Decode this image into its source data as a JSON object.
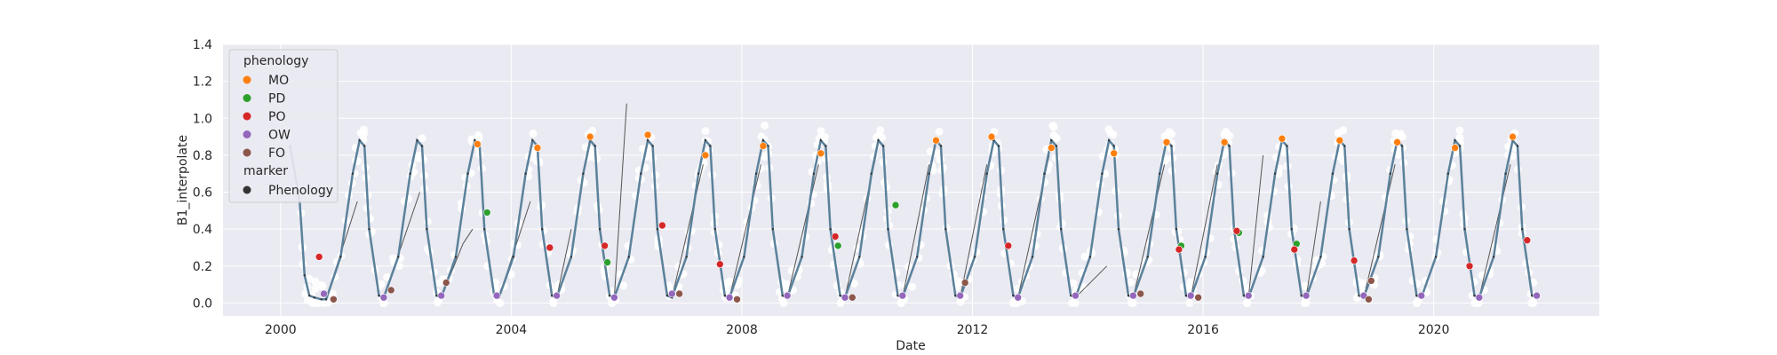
{
  "chart_data": {
    "type": "line",
    "title": "",
    "xlabel": "Date",
    "ylabel": "B1_interpolate",
    "xlim": [
      "1999-01-01",
      "2022-11-15"
    ],
    "ylim": [
      -0.07,
      1.4
    ],
    "x_ticks": [
      "2000",
      "2004",
      "2008",
      "2012",
      "2016",
      "2020"
    ],
    "y_ticks": [
      "0.0",
      "0.2",
      "0.4",
      "0.6",
      "0.8",
      "1.0",
      "1.2",
      "1.4"
    ],
    "grid": true,
    "background": "#eaeaf2",
    "legend": {
      "placement": "upper-left",
      "title": "phenology",
      "entries": [
        {
          "label": "MO",
          "color": "#ff7f0e"
        },
        {
          "label": "PD",
          "color": "#2ca02c"
        },
        {
          "label": "PO",
          "color": "#d62728"
        },
        {
          "label": "OW",
          "color": "#9467bd"
        },
        {
          "label": "FO",
          "color": "#8c564b"
        }
      ],
      "marker_title": "marker",
      "marker_entries": [
        {
          "label": "Phenology",
          "color": "#333333"
        }
      ]
    },
    "colors": {
      "smoothed": "#5b819b",
      "interpolated": "#555555",
      "raw": "#ffffff",
      "MO": "#ff7f0e",
      "PD": "#2ca02c",
      "PO": "#d62728",
      "OW": "#9467bd",
      "FO": "#8c564b"
    },
    "series": [
      {
        "name": "",
        "kind": "smoothed-line",
        "x": [
          "2000-03-01",
          "2000-05-01",
          "2000-06-01",
          "2000-07-01",
          "2000-08-01",
          "2000-09-15",
          "2000-10-15",
          "2001-01-15",
          "2001-04-01",
          "2001-05-15",
          "2001-06-15",
          "2001-07-15",
          "2001-09-15",
          "2001-10-15",
          "2002-01-15",
          "2002-04-01",
          "2002-05-15",
          "2002-06-15",
          "2002-07-15",
          "2002-09-15",
          "2002-10-15",
          "2003-01-15",
          "2003-04-01",
          "2003-05-15",
          "2003-06-15",
          "2003-07-15",
          "2003-09-15",
          "2003-10-15",
          "2004-01-15",
          "2004-04-01",
          "2004-05-15",
          "2004-06-15",
          "2004-07-15",
          "2004-09-15",
          "2004-10-15",
          "2005-01-15",
          "2005-04-01",
          "2005-05-15",
          "2005-06-15",
          "2005-07-15",
          "2005-09-15",
          "2005-10-15",
          "2006-01-15",
          "2006-04-01",
          "2006-05-15",
          "2006-06-15",
          "2006-07-15",
          "2006-09-15",
          "2006-10-15",
          "2007-01-15",
          "2007-04-01",
          "2007-05-15",
          "2007-06-15",
          "2007-07-15",
          "2007-09-15",
          "2007-10-15",
          "2008-01-15",
          "2008-04-01",
          "2008-05-15",
          "2008-06-15",
          "2008-07-15",
          "2008-09-15",
          "2008-10-15",
          "2009-01-15",
          "2009-04-01",
          "2009-05-15",
          "2009-06-15",
          "2009-07-15",
          "2009-09-15",
          "2009-10-15",
          "2010-01-15",
          "2010-04-01",
          "2010-05-15",
          "2010-06-15",
          "2010-07-15",
          "2010-09-15",
          "2010-10-15",
          "2011-01-15",
          "2011-04-01",
          "2011-05-15",
          "2011-06-15",
          "2011-07-15",
          "2011-09-15",
          "2011-10-15",
          "2012-01-15",
          "2012-04-01",
          "2012-05-15",
          "2012-06-15",
          "2012-07-15",
          "2012-09-15",
          "2012-10-15",
          "2013-01-15",
          "2013-04-01",
          "2013-05-15",
          "2013-06-15",
          "2013-07-15",
          "2013-09-15",
          "2013-10-15",
          "2014-01-15",
          "2014-04-01",
          "2014-05-15",
          "2014-06-15",
          "2014-07-15",
          "2014-09-15",
          "2014-10-15",
          "2015-01-15",
          "2015-04-01",
          "2015-05-15",
          "2015-06-15",
          "2015-07-15",
          "2015-09-15",
          "2015-10-15",
          "2016-01-15",
          "2016-04-01",
          "2016-05-15",
          "2016-06-15",
          "2016-07-15",
          "2016-09-15",
          "2016-10-15",
          "2017-01-15",
          "2017-04-01",
          "2017-05-15",
          "2017-06-15",
          "2017-07-15",
          "2017-09-15",
          "2017-10-15",
          "2018-01-15",
          "2018-04-01",
          "2018-05-15",
          "2018-06-15",
          "2018-07-15",
          "2018-09-15",
          "2018-10-15",
          "2019-01-15",
          "2019-04-01",
          "2019-05-15",
          "2019-06-15",
          "2019-07-15",
          "2019-09-15",
          "2019-10-15",
          "2020-01-15",
          "2020-04-01",
          "2020-05-15",
          "2020-06-15",
          "2020-07-15",
          "2020-09-15",
          "2020-10-15",
          "2021-01-15",
          "2021-04-01",
          "2021-05-15",
          "2021-06-15",
          "2021-07-15",
          "2021-09-15",
          "2021-10-15"
        ],
        "y": [
          0.85,
          0.55,
          0.15,
          0.04,
          0.03,
          0.02,
          0.02,
          0.25,
          0.7,
          0.88,
          0.85,
          0.4,
          0.04,
          0.03,
          0.25,
          0.7,
          0.88,
          0.85,
          0.4,
          0.04,
          0.03,
          0.25,
          0.7,
          0.88,
          0.85,
          0.4,
          0.04,
          0.03,
          0.25,
          0.7,
          0.88,
          0.85,
          0.4,
          0.04,
          0.03,
          0.25,
          0.7,
          0.88,
          0.85,
          0.4,
          0.04,
          0.03,
          0.25,
          0.7,
          0.88,
          0.85,
          0.4,
          0.04,
          0.03,
          0.25,
          0.7,
          0.88,
          0.85,
          0.4,
          0.04,
          0.03,
          0.25,
          0.7,
          0.88,
          0.85,
          0.4,
          0.04,
          0.03,
          0.25,
          0.7,
          0.88,
          0.85,
          0.4,
          0.04,
          0.03,
          0.25,
          0.7,
          0.88,
          0.85,
          0.4,
          0.04,
          0.03,
          0.25,
          0.7,
          0.88,
          0.85,
          0.4,
          0.04,
          0.03,
          0.25,
          0.7,
          0.88,
          0.85,
          0.4,
          0.04,
          0.03,
          0.25,
          0.7,
          0.88,
          0.85,
          0.4,
          0.04,
          0.03,
          0.25,
          0.7,
          0.88,
          0.85,
          0.4,
          0.04,
          0.03,
          0.25,
          0.7,
          0.88,
          0.85,
          0.4,
          0.04,
          0.03,
          0.25,
          0.7,
          0.88,
          0.85,
          0.4,
          0.04,
          0.03,
          0.25,
          0.7,
          0.88,
          0.85,
          0.4,
          0.04,
          0.03,
          0.25,
          0.7,
          0.88,
          0.85,
          0.4,
          0.04,
          0.03,
          0.25,
          0.7,
          0.88,
          0.85,
          0.4,
          0.04,
          0.03,
          0.25,
          0.7,
          0.88,
          0.85,
          0.4,
          0.04,
          0.03,
          0.25,
          0.7,
          0.88,
          0.85,
          0.4,
          0.04,
          0.03
        ]
      },
      {
        "name": "",
        "kind": "interpolated-gap-line",
        "segments": [
          {
            "x": [
              "2000-10-15",
              "2001-05-01"
            ],
            "y": [
              0.02,
              0.55
            ]
          },
          {
            "x": [
              "2001-10-15",
              "2002-06-01"
            ],
            "y": [
              0.03,
              0.6
            ]
          },
          {
            "x": [
              "2002-10-15",
              "2003-03-01"
            ],
            "y": [
              0.03,
              0.32
            ]
          },
          {
            "x": [
              "2003-03-01",
              "2003-05-01"
            ],
            "y": [
              0.32,
              0.4
            ]
          },
          {
            "x": [
              "2003-10-15",
              "2004-05-01"
            ],
            "y": [
              0.03,
              0.55
            ]
          },
          {
            "x": [
              "2004-10-15",
              "2005-01-15"
            ],
            "y": [
              0.03,
              0.4
            ]
          },
          {
            "x": [
              "2005-10-15",
              "2006-01-01"
            ],
            "y": [
              0.03,
              1.08
            ]
          },
          {
            "x": [
              "2006-10-15",
              "2007-05-01"
            ],
            "y": [
              0.03,
              0.75
            ]
          },
          {
            "x": [
              "2007-10-15",
              "2008-05-01"
            ],
            "y": [
              0.03,
              0.75
            ]
          },
          {
            "x": [
              "2008-10-15",
              "2009-05-01"
            ],
            "y": [
              0.03,
              0.75
            ]
          },
          {
            "x": [
              "2009-10-15",
              "2010-05-01"
            ],
            "y": [
              0.03,
              0.8
            ]
          },
          {
            "x": [
              "2010-10-15",
              "2011-04-01"
            ],
            "y": [
              0.03,
              0.75
            ]
          },
          {
            "x": [
              "2011-10-15",
              "2012-04-01"
            ],
            "y": [
              0.03,
              0.75
            ]
          },
          {
            "x": [
              "2012-10-15",
              "2013-05-01"
            ],
            "y": [
              0.03,
              0.8
            ]
          },
          {
            "x": [
              "2013-10-15",
              "2014-05-01"
            ],
            "y": [
              0.03,
              0.2
            ]
          },
          {
            "x": [
              "2014-10-15",
              "2015-05-01"
            ],
            "y": [
              0.03,
              0.75
            ]
          },
          {
            "x": [
              "2015-10-15",
              "2016-04-01"
            ],
            "y": [
              0.03,
              0.75
            ]
          },
          {
            "x": [
              "2016-10-15",
              "2017-01-15"
            ],
            "y": [
              0.03,
              0.8
            ]
          },
          {
            "x": [
              "2017-10-15",
              "2018-01-15"
            ],
            "y": [
              0.03,
              0.55
            ]
          },
          {
            "x": [
              "2018-10-15",
              "2019-05-01"
            ],
            "y": [
              0.03,
              0.75
            ]
          },
          {
            "x": [
              "2020-10-15",
              "2021-05-01"
            ],
            "y": [
              0.03,
              0.75
            ]
          }
        ]
      }
    ],
    "phenology_points": [
      {
        "label": "MO",
        "x": "2003-06-01",
        "y": 0.86
      },
      {
        "label": "MO",
        "x": "2004-06-15",
        "y": 0.84
      },
      {
        "label": "MO",
        "x": "2005-05-15",
        "y": 0.9
      },
      {
        "label": "MO",
        "x": "2006-05-15",
        "y": 0.91
      },
      {
        "label": "MO",
        "x": "2007-05-15",
        "y": 0.8
      },
      {
        "label": "MO",
        "x": "2008-05-15",
        "y": 0.85
      },
      {
        "label": "MO",
        "x": "2009-05-15",
        "y": 0.81
      },
      {
        "label": "MO",
        "x": "2011-05-15",
        "y": 0.88
      },
      {
        "label": "MO",
        "x": "2012-05-01",
        "y": 0.9
      },
      {
        "label": "MO",
        "x": "2013-05-15",
        "y": 0.84
      },
      {
        "label": "MO",
        "x": "2014-06-15",
        "y": 0.81
      },
      {
        "label": "MO",
        "x": "2015-05-15",
        "y": 0.87
      },
      {
        "label": "MO",
        "x": "2016-05-15",
        "y": 0.87
      },
      {
        "label": "MO",
        "x": "2017-05-15",
        "y": 0.89
      },
      {
        "label": "MO",
        "x": "2018-05-15",
        "y": 0.88
      },
      {
        "label": "MO",
        "x": "2019-05-15",
        "y": 0.87
      },
      {
        "label": "MO",
        "x": "2020-05-15",
        "y": 0.84
      },
      {
        "label": "MO",
        "x": "2021-05-15",
        "y": 0.9
      },
      {
        "label": "PD",
        "x": "2003-08-01",
        "y": 0.49
      },
      {
        "label": "PD",
        "x": "2005-09-01",
        "y": 0.22
      },
      {
        "label": "PD",
        "x": "2009-09-01",
        "y": 0.31
      },
      {
        "label": "PD",
        "x": "2010-09-01",
        "y": 0.53
      },
      {
        "label": "PD",
        "x": "2015-08-15",
        "y": 0.31
      },
      {
        "label": "PD",
        "x": "2016-08-15",
        "y": 0.38
      },
      {
        "label": "PD",
        "x": "2017-08-15",
        "y": 0.32
      },
      {
        "label": "PO",
        "x": "2000-09-01",
        "y": 0.25
      },
      {
        "label": "PO",
        "x": "2004-09-01",
        "y": 0.3
      },
      {
        "label": "PO",
        "x": "2005-08-15",
        "y": 0.31
      },
      {
        "label": "PO",
        "x": "2006-08-15",
        "y": 0.42
      },
      {
        "label": "PO",
        "x": "2007-08-15",
        "y": 0.21
      },
      {
        "label": "PO",
        "x": "2009-08-15",
        "y": 0.36
      },
      {
        "label": "PO",
        "x": "2012-08-15",
        "y": 0.31
      },
      {
        "label": "PO",
        "x": "2015-08-01",
        "y": 0.29
      },
      {
        "label": "PO",
        "x": "2016-08-01",
        "y": 0.39
      },
      {
        "label": "PO",
        "x": "2017-08-01",
        "y": 0.29
      },
      {
        "label": "PO",
        "x": "2018-08-15",
        "y": 0.23
      },
      {
        "label": "PO",
        "x": "2020-08-15",
        "y": 0.2
      },
      {
        "label": "PO",
        "x": "2021-08-15",
        "y": 0.34
      },
      {
        "label": "OW",
        "x": "2000-10-01",
        "y": 0.05
      },
      {
        "label": "OW",
        "x": "2001-10-15",
        "y": 0.03
      },
      {
        "label": "OW",
        "x": "2002-10-15",
        "y": 0.04
      },
      {
        "label": "OW",
        "x": "2003-10-01",
        "y": 0.04
      },
      {
        "label": "OW",
        "x": "2004-10-15",
        "y": 0.04
      },
      {
        "label": "OW",
        "x": "2005-10-15",
        "y": 0.03
      },
      {
        "label": "OW",
        "x": "2006-10-15",
        "y": 0.05
      },
      {
        "label": "OW",
        "x": "2007-10-15",
        "y": 0.03
      },
      {
        "label": "OW",
        "x": "2008-10-15",
        "y": 0.04
      },
      {
        "label": "OW",
        "x": "2009-10-15",
        "y": 0.03
      },
      {
        "label": "OW",
        "x": "2010-10-15",
        "y": 0.04
      },
      {
        "label": "OW",
        "x": "2011-10-15",
        "y": 0.04
      },
      {
        "label": "OW",
        "x": "2012-10-15",
        "y": 0.03
      },
      {
        "label": "OW",
        "x": "2013-10-15",
        "y": 0.04
      },
      {
        "label": "OW",
        "x": "2014-10-15",
        "y": 0.04
      },
      {
        "label": "OW",
        "x": "2015-10-15",
        "y": 0.04
      },
      {
        "label": "OW",
        "x": "2016-10-15",
        "y": 0.04
      },
      {
        "label": "OW",
        "x": "2017-10-15",
        "y": 0.04
      },
      {
        "label": "OW",
        "x": "2018-10-15",
        "y": 0.04
      },
      {
        "label": "OW",
        "x": "2019-10-15",
        "y": 0.04
      },
      {
        "label": "OW",
        "x": "2020-10-15",
        "y": 0.03
      },
      {
        "label": "OW",
        "x": "2021-10-15",
        "y": 0.04
      },
      {
        "label": "FO",
        "x": "2000-12-01",
        "y": 0.02
      },
      {
        "label": "FO",
        "x": "2001-12-01",
        "y": 0.07
      },
      {
        "label": "FO",
        "x": "2002-11-15",
        "y": 0.11
      },
      {
        "label": "FO",
        "x": "2006-12-01",
        "y": 0.05
      },
      {
        "label": "FO",
        "x": "2007-12-01",
        "y": 0.02
      },
      {
        "label": "FO",
        "x": "2009-12-01",
        "y": 0.03
      },
      {
        "label": "FO",
        "x": "2011-11-15",
        "y": 0.11
      },
      {
        "label": "FO",
        "x": "2014-12-01",
        "y": 0.05
      },
      {
        "label": "FO",
        "x": "2015-12-01",
        "y": 0.03
      },
      {
        "label": "FO",
        "x": "2018-12-01",
        "y": 0.12
      },
      {
        "label": "FO",
        "x": "2018-11-15",
        "y": 0.02
      }
    ]
  }
}
